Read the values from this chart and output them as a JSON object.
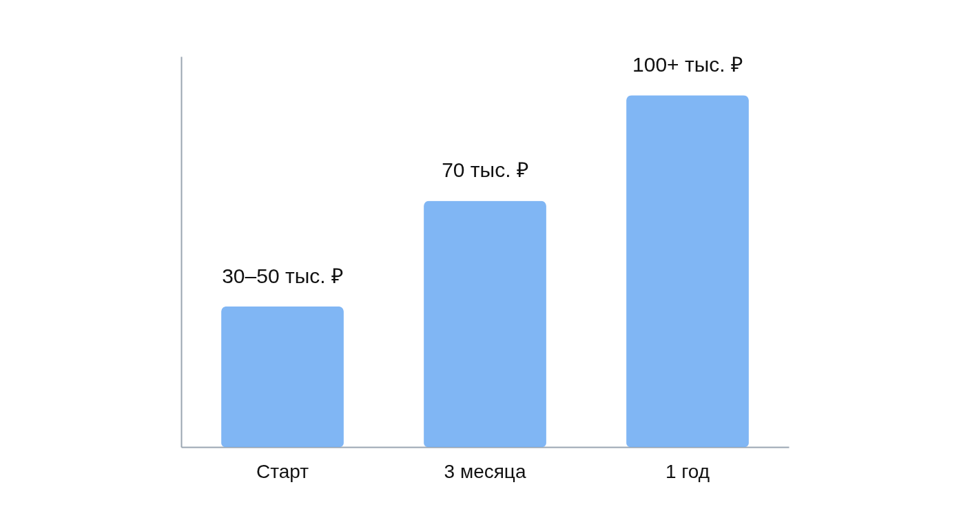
{
  "chart_data": {
    "type": "bar",
    "categories": [
      "Старт",
      "3 месяца",
      "1 год"
    ],
    "values": [
      40,
      70,
      100
    ],
    "value_labels": [
      "30–50 тыс. ₽",
      "70 тыс. ₽",
      "100+ тыс. ₽"
    ],
    "color": "#72aef3"
  }
}
